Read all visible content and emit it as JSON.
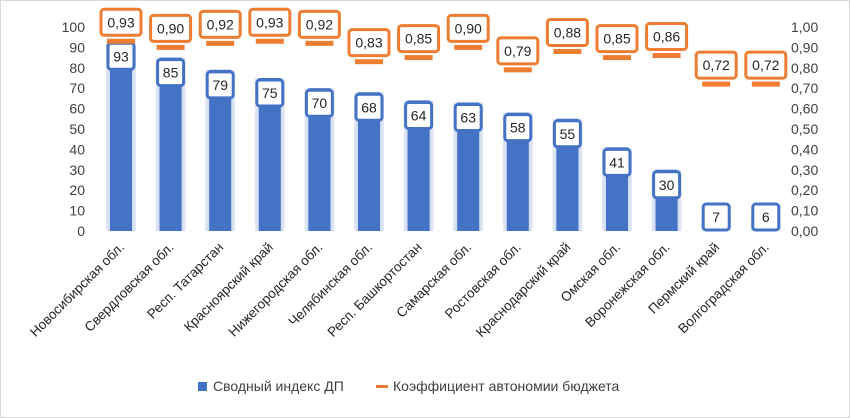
{
  "chart_data": {
    "type": "bar",
    "categories": [
      "Новосибирская обл.",
      "Свердловская обл.",
      "Респ. Татарстан",
      "Красноярский край",
      "Нижегородская обл.",
      "Челябинская обл.",
      "Респ. Башкортостан",
      "Самарская обл.",
      "Ростовская обл.",
      "Краснодарский край",
      "Омская обл.",
      "Воронежская обл.",
      "Пермский край",
      "Волгоградская обл."
    ],
    "series": [
      {
        "name": "Сводный индекс ДП",
        "type": "bar",
        "axis": "left",
        "color": "#4472c4",
        "values": [
          93,
          85,
          79,
          75,
          70,
          68,
          64,
          63,
          58,
          55,
          41,
          30,
          7,
          6
        ],
        "labels": [
          "93",
          "85",
          "79",
          "75",
          "70",
          "68",
          "64",
          "63",
          "58",
          "55",
          "41",
          "30",
          "7",
          "6"
        ]
      },
      {
        "name": "Коэффициент автономии бюджета",
        "type": "marker",
        "axis": "right",
        "color": "#ed7d31",
        "values": [
          0.93,
          0.9,
          0.92,
          0.93,
          0.92,
          0.83,
          0.85,
          0.9,
          0.79,
          0.88,
          0.85,
          0.86,
          0.72,
          0.72
        ],
        "labels": [
          "0,93",
          "0,90",
          "0,92",
          "0,93",
          "0,92",
          "0,83",
          "0,85",
          "0,90",
          "0,79",
          "0,88",
          "0,85",
          "0,86",
          "0,72",
          "0,72"
        ]
      }
    ],
    "y_left": {
      "range": [
        0,
        100
      ],
      "ticks": [
        "0",
        "10",
        "20",
        "30",
        "40",
        "50",
        "60",
        "70",
        "80",
        "90",
        "100"
      ]
    },
    "y_right": {
      "range": [
        0,
        1
      ],
      "ticks": [
        "0,00",
        "0,10",
        "0,20",
        "0,30",
        "0,40",
        "0,50",
        "0,60",
        "0,70",
        "0,80",
        "0,90",
        "1,00"
      ]
    },
    "grid": false,
    "legend_position": "bottom"
  }
}
